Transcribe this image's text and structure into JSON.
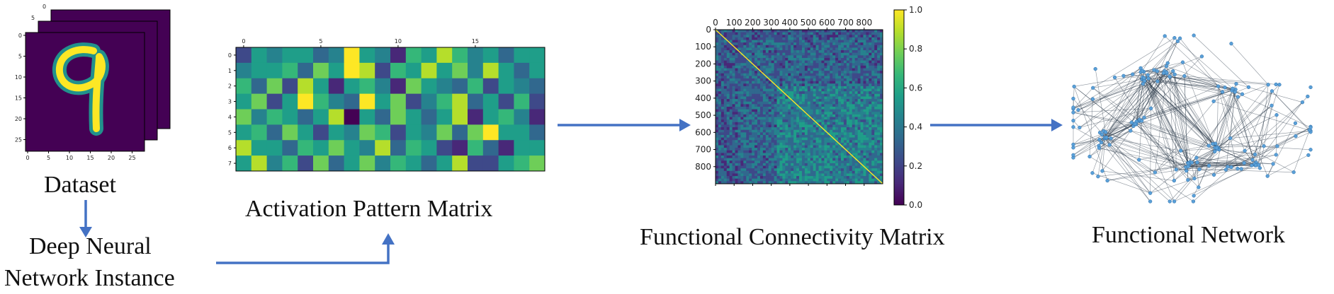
{
  "labels": {
    "dataset": "Dataset",
    "dnn_line1": "Deep Neural",
    "dnn_line2": "Network Instance",
    "activation": "Activation Pattern Matrix",
    "fc_matrix": "Functional Connectivity Matrix",
    "fc_network": "Functional Network"
  },
  "colors": {
    "arrow": "#4472c4",
    "viridis": [
      "#440154",
      "#482878",
      "#3e4989",
      "#31688e",
      "#26828e",
      "#1f9e89",
      "#35b779",
      "#6ece58",
      "#b5de2b",
      "#fde725"
    ]
  },
  "dataset_image": {
    "back_ticks": [
      "5",
      "0"
    ],
    "y_ticks": [
      "0",
      "5",
      "10",
      "15",
      "20",
      "25"
    ],
    "x_ticks": [
      "0",
      "5",
      "10",
      "15",
      "20",
      "25"
    ]
  },
  "activation_matrix": {
    "x_ticks": [
      "0",
      "5",
      "10",
      "15"
    ],
    "y_ticks": [
      "0",
      "1",
      "2",
      "3",
      "4",
      "5",
      "6",
      "7"
    ],
    "rows": 8,
    "cols": 20,
    "values": [
      [
        0.2,
        0.5,
        0.4,
        0.6,
        0.5,
        0.3,
        0.4,
        0.95,
        0.55,
        0.4,
        0.15,
        0.7,
        0.5,
        0.85,
        0.65,
        0.4,
        0.6,
        0.3,
        0.55,
        0.6
      ],
      [
        0.4,
        0.6,
        0.55,
        0.7,
        0.3,
        0.8,
        0.5,
        1.0,
        0.9,
        0.25,
        0.7,
        0.6,
        0.85,
        0.5,
        0.8,
        0.4,
        0.9,
        0.5,
        0.3,
        0.6
      ],
      [
        0.7,
        0.3,
        0.8,
        0.25,
        0.9,
        0.5,
        0.1,
        0.6,
        0.7,
        0.4,
        0.15,
        0.8,
        0.6,
        0.45,
        0.35,
        0.7,
        0.2,
        0.55,
        0.45,
        0.3
      ],
      [
        0.5,
        0.8,
        0.2,
        0.6,
        0.95,
        0.7,
        0.45,
        0.3,
        1.0,
        0.55,
        0.75,
        0.2,
        0.4,
        0.65,
        0.85,
        0.3,
        0.6,
        0.2,
        0.7,
        0.25
      ],
      [
        0.8,
        0.4,
        0.7,
        0.5,
        0.3,
        0.55,
        0.85,
        0.0,
        0.6,
        0.3,
        0.8,
        0.6,
        0.35,
        0.5,
        0.9,
        0.15,
        0.5,
        0.7,
        0.4,
        0.1
      ],
      [
        0.6,
        0.7,
        0.35,
        0.75,
        0.55,
        0.2,
        0.6,
        0.4,
        0.8,
        0.65,
        0.25,
        0.55,
        0.45,
        0.75,
        0.3,
        0.8,
        1.0,
        0.6,
        0.5,
        0.35
      ],
      [
        0.85,
        0.55,
        0.6,
        0.3,
        0.7,
        0.5,
        0.8,
        0.6,
        0.45,
        0.85,
        0.35,
        0.7,
        0.6,
        0.25,
        0.1,
        0.65,
        0.3,
        0.15,
        0.55,
        0.6
      ],
      [
        0.5,
        0.85,
        0.45,
        0.65,
        0.2,
        0.75,
        0.35,
        0.5,
        0.8,
        0.4,
        0.7,
        0.5,
        0.3,
        0.6,
        0.85,
        0.25,
        0.2,
        0.5,
        0.65,
        0.75
      ]
    ]
  },
  "connectivity_matrix": {
    "x_ticks": [
      "0",
      "100",
      "200",
      "300",
      "400",
      "500",
      "600",
      "700",
      "800"
    ],
    "y_ticks": [
      "0",
      "100",
      "200",
      "300",
      "400",
      "500",
      "600",
      "700",
      "800"
    ],
    "colorbar_ticks": [
      "0.0",
      "0.2",
      "0.4",
      "0.6",
      "0.8",
      "1.0"
    ]
  }
}
